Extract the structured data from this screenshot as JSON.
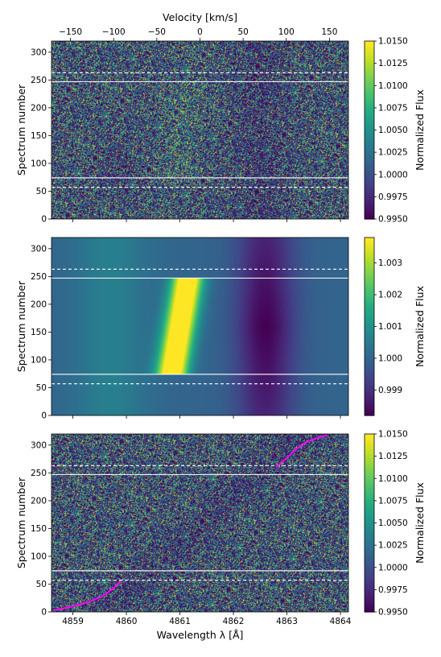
{
  "chart_data": [
    {
      "type": "heatmap",
      "panel": "top",
      "description_axis_top": "Velocity [km/s]",
      "xlabel_top": "Velocity [km/s]",
      "xticks_top": [
        -150,
        -100,
        -50,
        0,
        50,
        100,
        150
      ],
      "xlim_top": [
        -172,
        172
      ],
      "xlim": [
        4858.6,
        4864.15
      ],
      "xticks": [
        4859,
        4860,
        4861,
        4862,
        4863,
        4864
      ],
      "ylabel": "Spectrum number",
      "ylim": [
        0,
        320
      ],
      "yticks": [
        0,
        50,
        100,
        150,
        200,
        250,
        300
      ],
      "colorbar_label": "Normalized Flux",
      "color_range": [
        0.995,
        1.015
      ],
      "colorbar_ticks": [
        "0.9950",
        "0.9975",
        "1.0000",
        "1.0025",
        "1.0050",
        "1.0075",
        "1.0100",
        "1.0125",
        "1.0150"
      ],
      "colorbar_values": [
        0.995,
        0.9975,
        1.0,
        1.0025,
        1.005,
        1.0075,
        1.01,
        1.0125,
        1.015
      ],
      "horizontal_lines": [
        {
          "y": 57,
          "style": "dashed"
        },
        {
          "y": 74,
          "style": "solid"
        },
        {
          "y": 247,
          "style": "solid"
        },
        {
          "y": 263,
          "style": "dashed"
        }
      ]
    },
    {
      "type": "heatmap",
      "panel": "middle",
      "xlim": [
        4858.6,
        4864.15
      ],
      "xticks": [
        4859,
        4860,
        4861,
        4862,
        4863,
        4864
      ],
      "ylabel": "Spectrum number",
      "ylim": [
        0,
        320
      ],
      "yticks": [
        0,
        50,
        100,
        150,
        200,
        250,
        300
      ],
      "colorbar_label": "Normalized Flux",
      "color_range": [
        0.9982,
        1.0038
      ],
      "colorbar_ticks": [
        "0.999",
        "1.000",
        "1.001",
        "1.002",
        "1.003"
      ],
      "colorbar_values": [
        0.999,
        1.0,
        1.001,
        1.002,
        1.003
      ],
      "model": {
        "emission_center_at_spectrum_74": 4860.85,
        "emission_center_at_spectrum_247": 4861.15,
        "emission_peak": 1.0038,
        "absorption_center": 4862.6,
        "absorption_min": 0.9982,
        "active_range": [
          74,
          247
        ]
      },
      "horizontal_lines": [
        {
          "y": 57,
          "style": "dashed"
        },
        {
          "y": 74,
          "style": "solid"
        },
        {
          "y": 247,
          "style": "solid"
        },
        {
          "y": 263,
          "style": "dashed"
        }
      ]
    },
    {
      "type": "heatmap",
      "panel": "bottom",
      "xlabel": "Wavelength λ [Å]",
      "xlim": [
        4858.6,
        4864.15
      ],
      "xticks": [
        4859,
        4860,
        4861,
        4862,
        4863,
        4864
      ],
      "ylabel": "Spectrum number",
      "ylim": [
        0,
        320
      ],
      "yticks": [
        0,
        50,
        100,
        150,
        200,
        250,
        300
      ],
      "colorbar_label": "Normalized Flux",
      "color_range": [
        0.995,
        1.015
      ],
      "colorbar_ticks": [
        "0.9950",
        "0.9975",
        "1.0000",
        "1.0025",
        "1.0050",
        "1.0075",
        "1.0100",
        "1.0125",
        "1.0150"
      ],
      "colorbar_values": [
        0.995,
        0.9975,
        1.0,
        1.0025,
        1.005,
        1.0075,
        1.01,
        1.0125,
        1.015
      ],
      "horizontal_lines": [
        {
          "y": 57,
          "style": "dashed"
        },
        {
          "y": 74,
          "style": "solid"
        },
        {
          "y": 247,
          "style": "solid"
        },
        {
          "y": 263,
          "style": "dashed"
        }
      ],
      "magenta_tracks": [
        {
          "x": [
            4858.65,
            4859.0,
            4859.3,
            4859.55,
            4859.75,
            4859.9
          ],
          "y": [
            3,
            10,
            18,
            28,
            42,
            55
          ]
        },
        {
          "x": [
            4862.8,
            4863.0,
            4863.2,
            4863.4,
            4863.6,
            4863.75
          ],
          "y": [
            260,
            277,
            295,
            307,
            314,
            318
          ]
        }
      ],
      "colors": {
        "track": "#ff00ff",
        "lines": "#ffffff"
      }
    }
  ]
}
